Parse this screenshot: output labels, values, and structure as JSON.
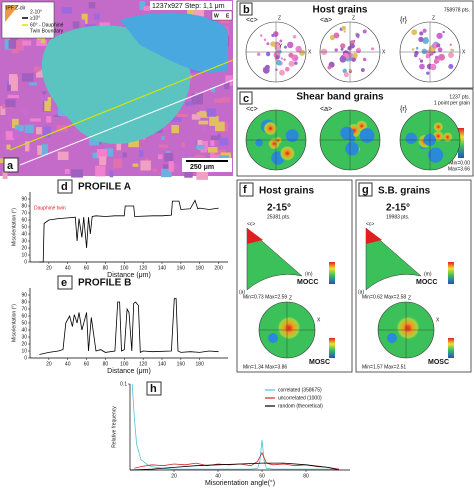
{
  "a": {
    "label": "a",
    "header": "1237x927 Step: 1,1 μm",
    "legend_title": "IPF Z-dir",
    "legend": [
      "2-10°",
      "≥10°",
      "60° - Dauphiné",
      "Twin Boundary"
    ],
    "compass": [
      "W",
      "E"
    ],
    "scale": "250 μm"
  },
  "b": {
    "label": "b",
    "title": "Host grains",
    "points": "758978 pts.",
    "figures": [
      "<c>",
      "<a>",
      "{r}"
    ],
    "axes": [
      "Z",
      "X",
      "Y"
    ]
  },
  "c": {
    "label": "c",
    "title": "Shear band grains",
    "points": [
      "1237 pts.",
      "1 point per grain"
    ],
    "figures": [
      "<c>",
      "<a>",
      "{r}"
    ],
    "range": [
      "Min=0.00",
      "Max=3.66"
    ]
  },
  "d": {
    "label": "d",
    "title": "PROFILE A",
    "annotation": "Dauphiné twin",
    "chart": {
      "type": "line",
      "xlabel": "Distance (μm)",
      "ylabel": "Misorientation (°)",
      "color": "#000000",
      "x": [
        10,
        14,
        15,
        20,
        30,
        40,
        48,
        50,
        52,
        55,
        57,
        60,
        62,
        64,
        66,
        70,
        80,
        90,
        100,
        101,
        110,
        111,
        130,
        140,
        150,
        151,
        158,
        160,
        170,
        175,
        178,
        180,
        190,
        200
      ],
      "values": [
        0,
        0,
        55,
        60,
        62,
        63,
        64,
        30,
        62,
        35,
        64,
        20,
        64,
        40,
        65,
        66,
        65,
        66,
        66,
        80,
        80,
        65,
        66,
        66,
        67,
        87,
        87,
        75,
        76,
        88,
        76,
        77,
        75,
        77
      ],
      "xlim": [
        0,
        210
      ],
      "ylim": [
        0,
        100
      ],
      "xticks": [
        20,
        40,
        60,
        80,
        100,
        120,
        140,
        160,
        180,
        200
      ],
      "yticks": [
        0,
        10,
        20,
        30,
        40,
        50,
        60,
        70,
        80,
        90
      ]
    }
  },
  "e": {
    "label": "e",
    "title": "PROFILE B",
    "chart": {
      "type": "line",
      "xlabel": "Distance (μm)",
      "ylabel": "Misorientation (°)",
      "color": "#000000",
      "x": [
        10,
        20,
        30,
        35,
        38,
        40,
        42,
        45,
        47,
        50,
        52,
        55,
        60,
        62,
        65,
        70,
        75,
        80,
        90,
        93,
        95,
        97,
        100,
        103,
        105,
        108,
        110,
        112,
        115,
        117,
        120,
        130,
        150,
        153,
        155,
        157,
        160,
        170,
        180,
        190,
        200
      ],
      "values": [
        5,
        8,
        10,
        12,
        50,
        55,
        60,
        45,
        62,
        50,
        65,
        40,
        65,
        10,
        58,
        10,
        12,
        8,
        10,
        80,
        80,
        10,
        12,
        70,
        65,
        10,
        78,
        80,
        75,
        8,
        10,
        9,
        10,
        85,
        85,
        10,
        8,
        9,
        8,
        10,
        9
      ],
      "xlim": [
        0,
        210
      ],
      "ylim": [
        0,
        100
      ],
      "xticks": [
        20,
        40,
        60,
        80,
        100,
        120,
        140,
        160,
        180
      ],
      "yticks": [
        0,
        10,
        20,
        30,
        40,
        50,
        60,
        70,
        80,
        90
      ]
    }
  },
  "f": {
    "label": "f",
    "title": "Host grains",
    "angle": "2-15°",
    "points": "25381 pts.",
    "marks": [
      "<c>",
      "(m)",
      "(a)"
    ],
    "ipf": "MOCC",
    "ipf_range": "Min=0.73 Max=2.59",
    "pf": "MOSC",
    "pf_range": "Min=1.34 Max=3.86",
    "axes": [
      "Z",
      "X"
    ]
  },
  "g": {
    "label": "g",
    "title": "S.B. grains",
    "angle": "2-15°",
    "points": "19983 pts.",
    "marks": [
      "<c>",
      "(m)",
      "(a)"
    ],
    "ipf": "MOCC",
    "ipf_range": "Min=0.62 Max=2.58",
    "pf": "MOSC",
    "pf_range": "Min=1.57 Max=2.51",
    "axes": [
      "Z",
      "X"
    ]
  },
  "h": {
    "label": "h",
    "chart": {
      "type": "line",
      "xlabel": "Misorientation angle(°)",
      "ylabel": "Relative frequency",
      "legend": true,
      "series": [
        {
          "name": "correlated (358675)",
          "color": "#4fc3d9",
          "x": [
            1,
            2,
            3,
            5,
            8,
            10,
            15,
            20,
            30,
            40,
            50,
            55,
            58,
            59,
            60,
            61,
            62,
            65,
            70,
            80,
            90,
            95
          ],
          "values": [
            0.1,
            0.06,
            0.03,
            0.012,
            0.006,
            0.004,
            0.002,
            0.001,
            0.001,
            0.001,
            0.001,
            0.001,
            0.002,
            0.01,
            0.035,
            0.01,
            0.002,
            0.001,
            0.001,
            0.001,
            0.001,
            0.001
          ]
        },
        {
          "name": "uncorrelated (1000)",
          "color": "#d62728",
          "x": [
            2,
            5,
            10,
            15,
            20,
            25,
            30,
            35,
            40,
            45,
            50,
            55,
            58,
            60,
            62,
            65,
            70,
            75,
            80,
            85,
            90,
            95
          ],
          "values": [
            0.002,
            0.004,
            0.006,
            0.005,
            0.007,
            0.006,
            0.008,
            0.005,
            0.007,
            0.006,
            0.007,
            0.005,
            0.01,
            0.02,
            0.008,
            0.006,
            0.007,
            0.005,
            0.006,
            0.004,
            0.003,
            0.001
          ]
        },
        {
          "name": "random (theoretical)",
          "color": "#000000",
          "x": [
            0,
            10,
            20,
            30,
            40,
            50,
            60,
            70,
            80,
            90,
            95
          ],
          "values": [
            0,
            0.001,
            0.003,
            0.005,
            0.006,
            0.007,
            0.008,
            0.008,
            0.006,
            0.003,
            0
          ]
        }
      ],
      "xlim": [
        0,
        100
      ],
      "ylim": [
        0,
        0.1
      ],
      "xticks": [
        20,
        40,
        60,
        80
      ],
      "yticks": [
        0.1
      ]
    }
  }
}
